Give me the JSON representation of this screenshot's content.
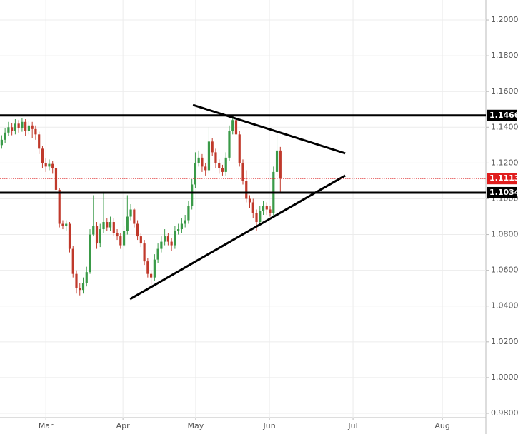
{
  "chart_data": {
    "type": "candlestick",
    "x": [
      0,
      1,
      2,
      3,
      4,
      5,
      6,
      7,
      8,
      9,
      10,
      11,
      12,
      13,
      14,
      15,
      16,
      17,
      18,
      19,
      20,
      21,
      22,
      23,
      24,
      25,
      26,
      27,
      28,
      29,
      30,
      31,
      32,
      33,
      34,
      35,
      36,
      37,
      38,
      39,
      40,
      41,
      42,
      43,
      44,
      45,
      46,
      47,
      48,
      49,
      50,
      51,
      52,
      53,
      54,
      55,
      56,
      57,
      58,
      59,
      60,
      61,
      62,
      63,
      64,
      65,
      66,
      67,
      68,
      69,
      70,
      71,
      72,
      73,
      74,
      75,
      76,
      77,
      78,
      79,
      80,
      81,
      82
    ],
    "open": [
      1.13,
      1.133,
      1.137,
      1.14,
      1.138,
      1.142,
      1.1395,
      1.143,
      1.138,
      1.141,
      1.139,
      1.136,
      1.128,
      1.12,
      1.118,
      1.1195,
      1.117,
      1.105,
      1.086,
      1.085,
      1.086,
      1.072,
      1.058,
      1.05,
      1.049,
      1.053,
      1.059,
      1.08,
      1.085,
      1.075,
      1.083,
      1.087,
      1.084,
      1.087,
      1.081,
      1.079,
      1.074,
      1.082,
      1.09,
      1.094,
      1.086,
      1.079,
      1.075,
      1.065,
      1.058,
      1.056,
      1.066,
      1.072,
      1.076,
      1.079,
      1.076,
      1.074,
      1.082,
      1.083,
      1.086,
      1.088,
      1.096,
      1.108,
      1.12,
      1.123,
      1.118,
      1.116,
      1.132,
      1.126,
      1.12,
      1.117,
      1.115,
      1.123,
      1.138,
      1.144,
      1.136,
      1.12,
      1.11,
      1.1,
      1.098,
      1.092,
      1.087,
      1.093,
      1.096,
      1.094,
      1.092,
      1.115,
      1.127
    ],
    "high": [
      1.1355,
      1.1395,
      1.143,
      1.1425,
      1.1445,
      1.144,
      1.145,
      1.1445,
      1.1435,
      1.143,
      1.141,
      1.1375,
      1.1295,
      1.1225,
      1.122,
      1.121,
      1.1185,
      1.106,
      1.088,
      1.088,
      1.087,
      1.0735,
      1.06,
      1.053,
      1.056,
      1.062,
      1.083,
      1.102,
      1.087,
      1.086,
      1.104,
      1.089,
      1.09,
      1.089,
      1.083,
      1.081,
      1.085,
      1.102,
      1.097,
      1.095,
      1.088,
      1.081,
      1.077,
      1.067,
      1.06,
      1.069,
      1.075,
      1.079,
      1.083,
      1.081,
      1.078,
      1.085,
      1.086,
      1.089,
      1.091,
      1.099,
      1.111,
      1.126,
      1.127,
      1.125,
      1.12,
      1.14,
      1.134,
      1.128,
      1.122,
      1.119,
      1.126,
      1.141,
      1.147,
      1.146,
      1.138,
      1.122,
      1.116,
      1.102,
      1.1,
      1.094,
      1.096,
      1.099,
      1.098,
      1.096,
      1.118,
      1.138,
      1.129
    ],
    "low": [
      1.128,
      1.131,
      1.135,
      1.1355,
      1.136,
      1.137,
      1.1375,
      1.135,
      1.136,
      1.134,
      1.133,
      1.125,
      1.117,
      1.115,
      1.116,
      1.114,
      1.103,
      1.084,
      1.083,
      1.082,
      1.07,
      1.056,
      1.047,
      1.046,
      1.047,
      1.051,
      1.058,
      1.079,
      1.072,
      1.073,
      1.081,
      1.082,
      1.082,
      1.079,
      1.077,
      1.072,
      1.073,
      1.08,
      1.088,
      1.084,
      1.077,
      1.073,
      1.063,
      1.056,
      1.052,
      1.054,
      1.064,
      1.07,
      1.074,
      1.074,
      1.071,
      1.072,
      1.08,
      1.081,
      1.084,
      1.086,
      1.094,
      1.106,
      1.118,
      1.115,
      1.113,
      1.114,
      1.124,
      1.117,
      1.114,
      1.113,
      1.113,
      1.121,
      1.136,
      1.134,
      1.118,
      1.108,
      1.098,
      1.095,
      1.089,
      1.082,
      1.085,
      1.091,
      1.091,
      1.09,
      1.09,
      1.113,
      1.104
    ],
    "close": [
      1.133,
      1.137,
      1.14,
      1.138,
      1.142,
      1.1395,
      1.143,
      1.138,
      1.141,
      1.139,
      1.136,
      1.128,
      1.12,
      1.118,
      1.1195,
      1.117,
      1.105,
      1.086,
      1.085,
      1.086,
      1.072,
      1.058,
      1.05,
      1.049,
      1.053,
      1.059,
      1.08,
      1.085,
      1.075,
      1.083,
      1.087,
      1.084,
      1.087,
      1.081,
      1.079,
      1.074,
      1.082,
      1.09,
      1.094,
      1.086,
      1.079,
      1.075,
      1.065,
      1.058,
      1.056,
      1.066,
      1.072,
      1.076,
      1.079,
      1.076,
      1.074,
      1.082,
      1.083,
      1.086,
      1.088,
      1.096,
      1.108,
      1.12,
      1.123,
      1.118,
      1.116,
      1.132,
      1.126,
      1.12,
      1.117,
      1.115,
      1.123,
      1.138,
      1.144,
      1.136,
      1.12,
      1.11,
      1.1,
      1.098,
      1.092,
      1.087,
      1.093,
      1.096,
      1.094,
      1.092,
      1.115,
      1.127,
      1.1113
    ],
    "up_color": "#3a9a48",
    "down_color": "#c0392b",
    "xlim": [
      -0.5,
      142.5
    ],
    "xticks": [
      {
        "value": 13,
        "label": "Mar"
      },
      {
        "value": 35.7,
        "label": "Apr"
      },
      {
        "value": 57.1,
        "label": "May"
      },
      {
        "value": 78.8,
        "label": "Jun"
      },
      {
        "value": 103.4,
        "label": "Jul"
      },
      {
        "value": 129.7,
        "label": "Aug"
      }
    ],
    "ylim": [
      0.9776,
      1.2112
    ],
    "yticks": [
      {
        "value": 0.98,
        "label": "0.9800"
      },
      {
        "value": 1.0,
        "label": "1.0000"
      },
      {
        "value": 1.02,
        "label": "1.0200"
      },
      {
        "value": 1.04,
        "label": "1.0400"
      },
      {
        "value": 1.06,
        "label": "1.0600"
      },
      {
        "value": 1.08,
        "label": "1.0800"
      },
      {
        "value": 1.1,
        "label": "1.1000"
      },
      {
        "value": 1.12,
        "label": "1.1200"
      },
      {
        "value": 1.14,
        "label": "1.1400"
      },
      {
        "value": 1.16,
        "label": "1.1600"
      },
      {
        "value": 1.18,
        "label": "1.1800"
      },
      {
        "value": 1.2,
        "label": "1.2000"
      }
    ],
    "grid": true,
    "levels": [
      1.1466,
      1.1034
    ],
    "last_price": 1.1113,
    "trendlines": [
      {
        "x": [
          56.3,
          101.1
        ],
        "y": [
          1.1525,
          1.1254
        ]
      },
      {
        "x": [
          37.8,
          101.1
        ],
        "y": [
          1.0439,
          1.113
        ]
      }
    ]
  }
}
